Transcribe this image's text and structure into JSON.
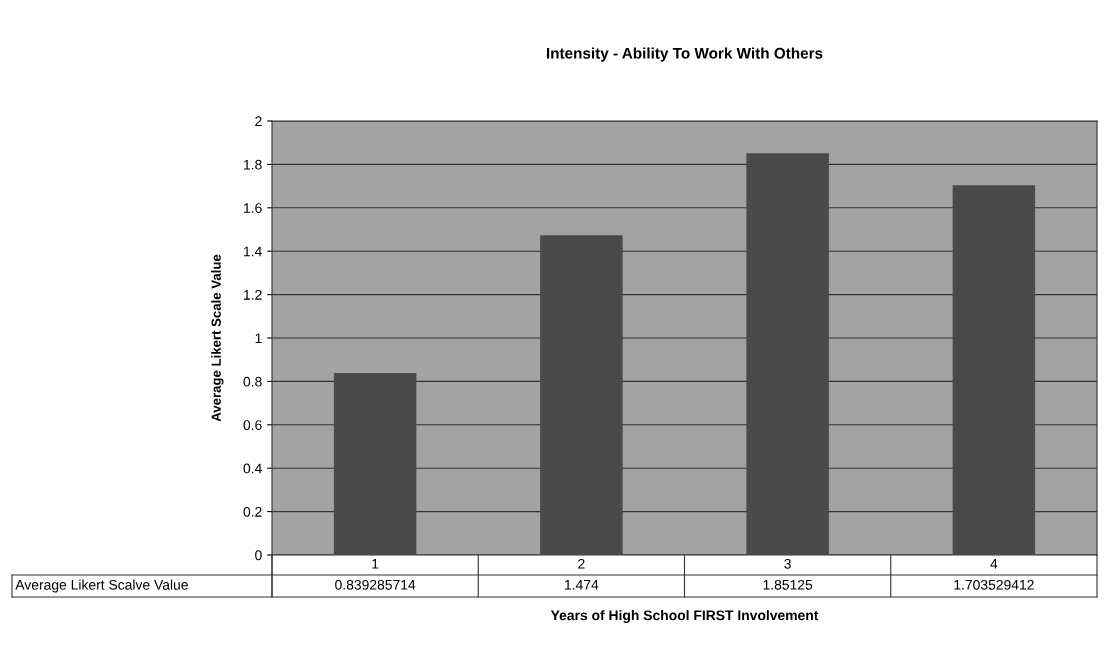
{
  "chart_data": {
    "type": "bar",
    "title": "Intensity - Ability To Work With Others",
    "xlabel": "Years of High School FIRST Involvement",
    "ylabel": "Average Likert Scale Value",
    "categories": [
      "1",
      "2",
      "3",
      "4"
    ],
    "series": [
      {
        "name": "Average Likert Scalve Value",
        "color": "#4a4a4a",
        "values": [
          0.839285714,
          1.474,
          1.85125,
          1.703529412
        ]
      }
    ],
    "ylim": [
      0,
      2
    ],
    "yticks": [
      0,
      0.2,
      0.4,
      0.6,
      0.8,
      1,
      1.2,
      1.4,
      1.6,
      1.8,
      2
    ],
    "grid": "y",
    "data_labels": true
  }
}
